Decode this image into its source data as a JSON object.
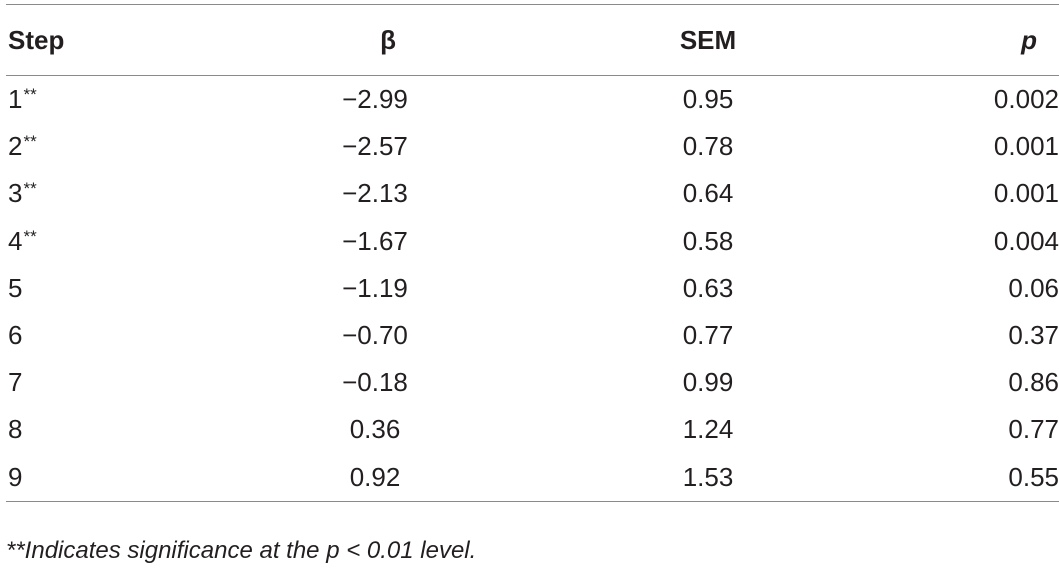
{
  "table": {
    "headers": {
      "step": "Step",
      "beta": "β",
      "sem": "SEM",
      "p": "p"
    },
    "rows": [
      {
        "step": "1",
        "mark": "**",
        "beta": "−2.99",
        "sem": "0.95",
        "p": "0.002"
      },
      {
        "step": "2",
        "mark": "**",
        "beta": "−2.57",
        "sem": "0.78",
        "p": "0.001"
      },
      {
        "step": "3",
        "mark": "**",
        "beta": "−2.13",
        "sem": "0.64",
        "p": "0.001"
      },
      {
        "step": "4",
        "mark": "**",
        "beta": "−1.67",
        "sem": "0.58",
        "p": "0.004"
      },
      {
        "step": "5",
        "mark": "",
        "beta": "−1.19",
        "sem": "0.63",
        "p": "0.06"
      },
      {
        "step": "6",
        "mark": "",
        "beta": "−0.70",
        "sem": "0.77",
        "p": "0.37"
      },
      {
        "step": "7",
        "mark": "",
        "beta": "−0.18",
        "sem": "0.99",
        "p": "0.86"
      },
      {
        "step": "8",
        "mark": "",
        "beta": "0.36",
        "sem": "1.24",
        "p": "0.77"
      },
      {
        "step": "9",
        "mark": "",
        "beta": "0.92",
        "sem": "1.53",
        "p": "0.55"
      }
    ]
  },
  "footnote": "**Indicates significance at the p < 0.01 level."
}
